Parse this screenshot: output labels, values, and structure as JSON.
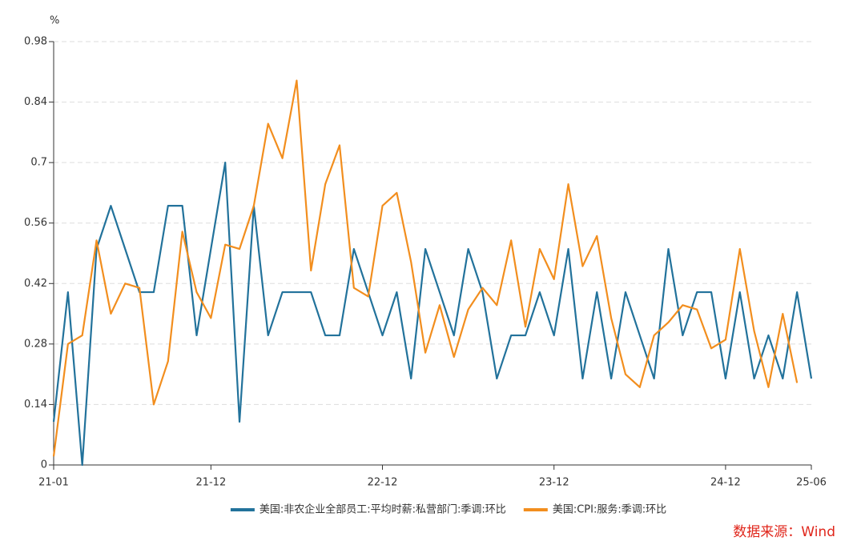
{
  "chart_data": {
    "type": "line",
    "y_unit": "%",
    "source": "数据来源：Wind",
    "legend": "bottom",
    "grid": true,
    "categories": [
      "21-01",
      null,
      null,
      null,
      null,
      null,
      null,
      null,
      null,
      null,
      null,
      "21-12",
      null,
      null,
      null,
      null,
      null,
      null,
      null,
      null,
      null,
      null,
      null,
      "22-12",
      null,
      null,
      null,
      null,
      null,
      null,
      null,
      null,
      null,
      null,
      null,
      "23-12",
      null,
      null,
      null,
      null,
      null,
      null,
      null,
      null,
      null,
      null,
      null,
      "24-12",
      null,
      null,
      null,
      null,
      null,
      "25-06"
    ],
    "ylim": [
      0,
      0.98
    ],
    "yticks": [
      0,
      0.14,
      0.28,
      0.42,
      0.56,
      0.7,
      0.84,
      0.98
    ],
    "series": [
      {
        "name": "美国:非农企业全部员工:平均时薪:私营部门:季调:环比",
        "color": "#22729b",
        "values": [
          0.1,
          0.4,
          0.0,
          0.5,
          0.6,
          0.5,
          0.4,
          0.4,
          0.6,
          0.6,
          0.3,
          0.5,
          0.7,
          0.1,
          0.6,
          0.3,
          0.4,
          0.4,
          0.4,
          0.3,
          0.3,
          0.5,
          0.4,
          0.3,
          0.4,
          0.2,
          0.5,
          0.4,
          0.3,
          0.5,
          0.4,
          0.2,
          0.3,
          0.3,
          0.4,
          0.3,
          0.5,
          0.2,
          0.4,
          0.2,
          0.4,
          0.3,
          0.2,
          0.5,
          0.3,
          0.4,
          0.4,
          0.2,
          0.4,
          0.2,
          0.3,
          0.2,
          0.4,
          0.2
        ]
      },
      {
        "name": "美国:CPI:服务:季调:环比",
        "color": "#f28e1e",
        "values": [
          0.02,
          0.28,
          0.3,
          0.52,
          0.35,
          0.42,
          0.41,
          0.14,
          0.24,
          0.54,
          0.4,
          0.34,
          0.51,
          0.5,
          0.6,
          0.79,
          0.71,
          0.89,
          0.45,
          0.65,
          0.74,
          0.41,
          0.39,
          0.6,
          0.63,
          0.47,
          0.26,
          0.37,
          0.25,
          0.36,
          0.41,
          0.37,
          0.52,
          0.32,
          0.5,
          0.43,
          0.65,
          0.46,
          0.53,
          0.34,
          0.21,
          0.18,
          0.3,
          0.33,
          0.37,
          0.36,
          0.27,
          0.29,
          0.5,
          0.31,
          0.18,
          0.35,
          0.19,
          null
        ]
      }
    ]
  }
}
